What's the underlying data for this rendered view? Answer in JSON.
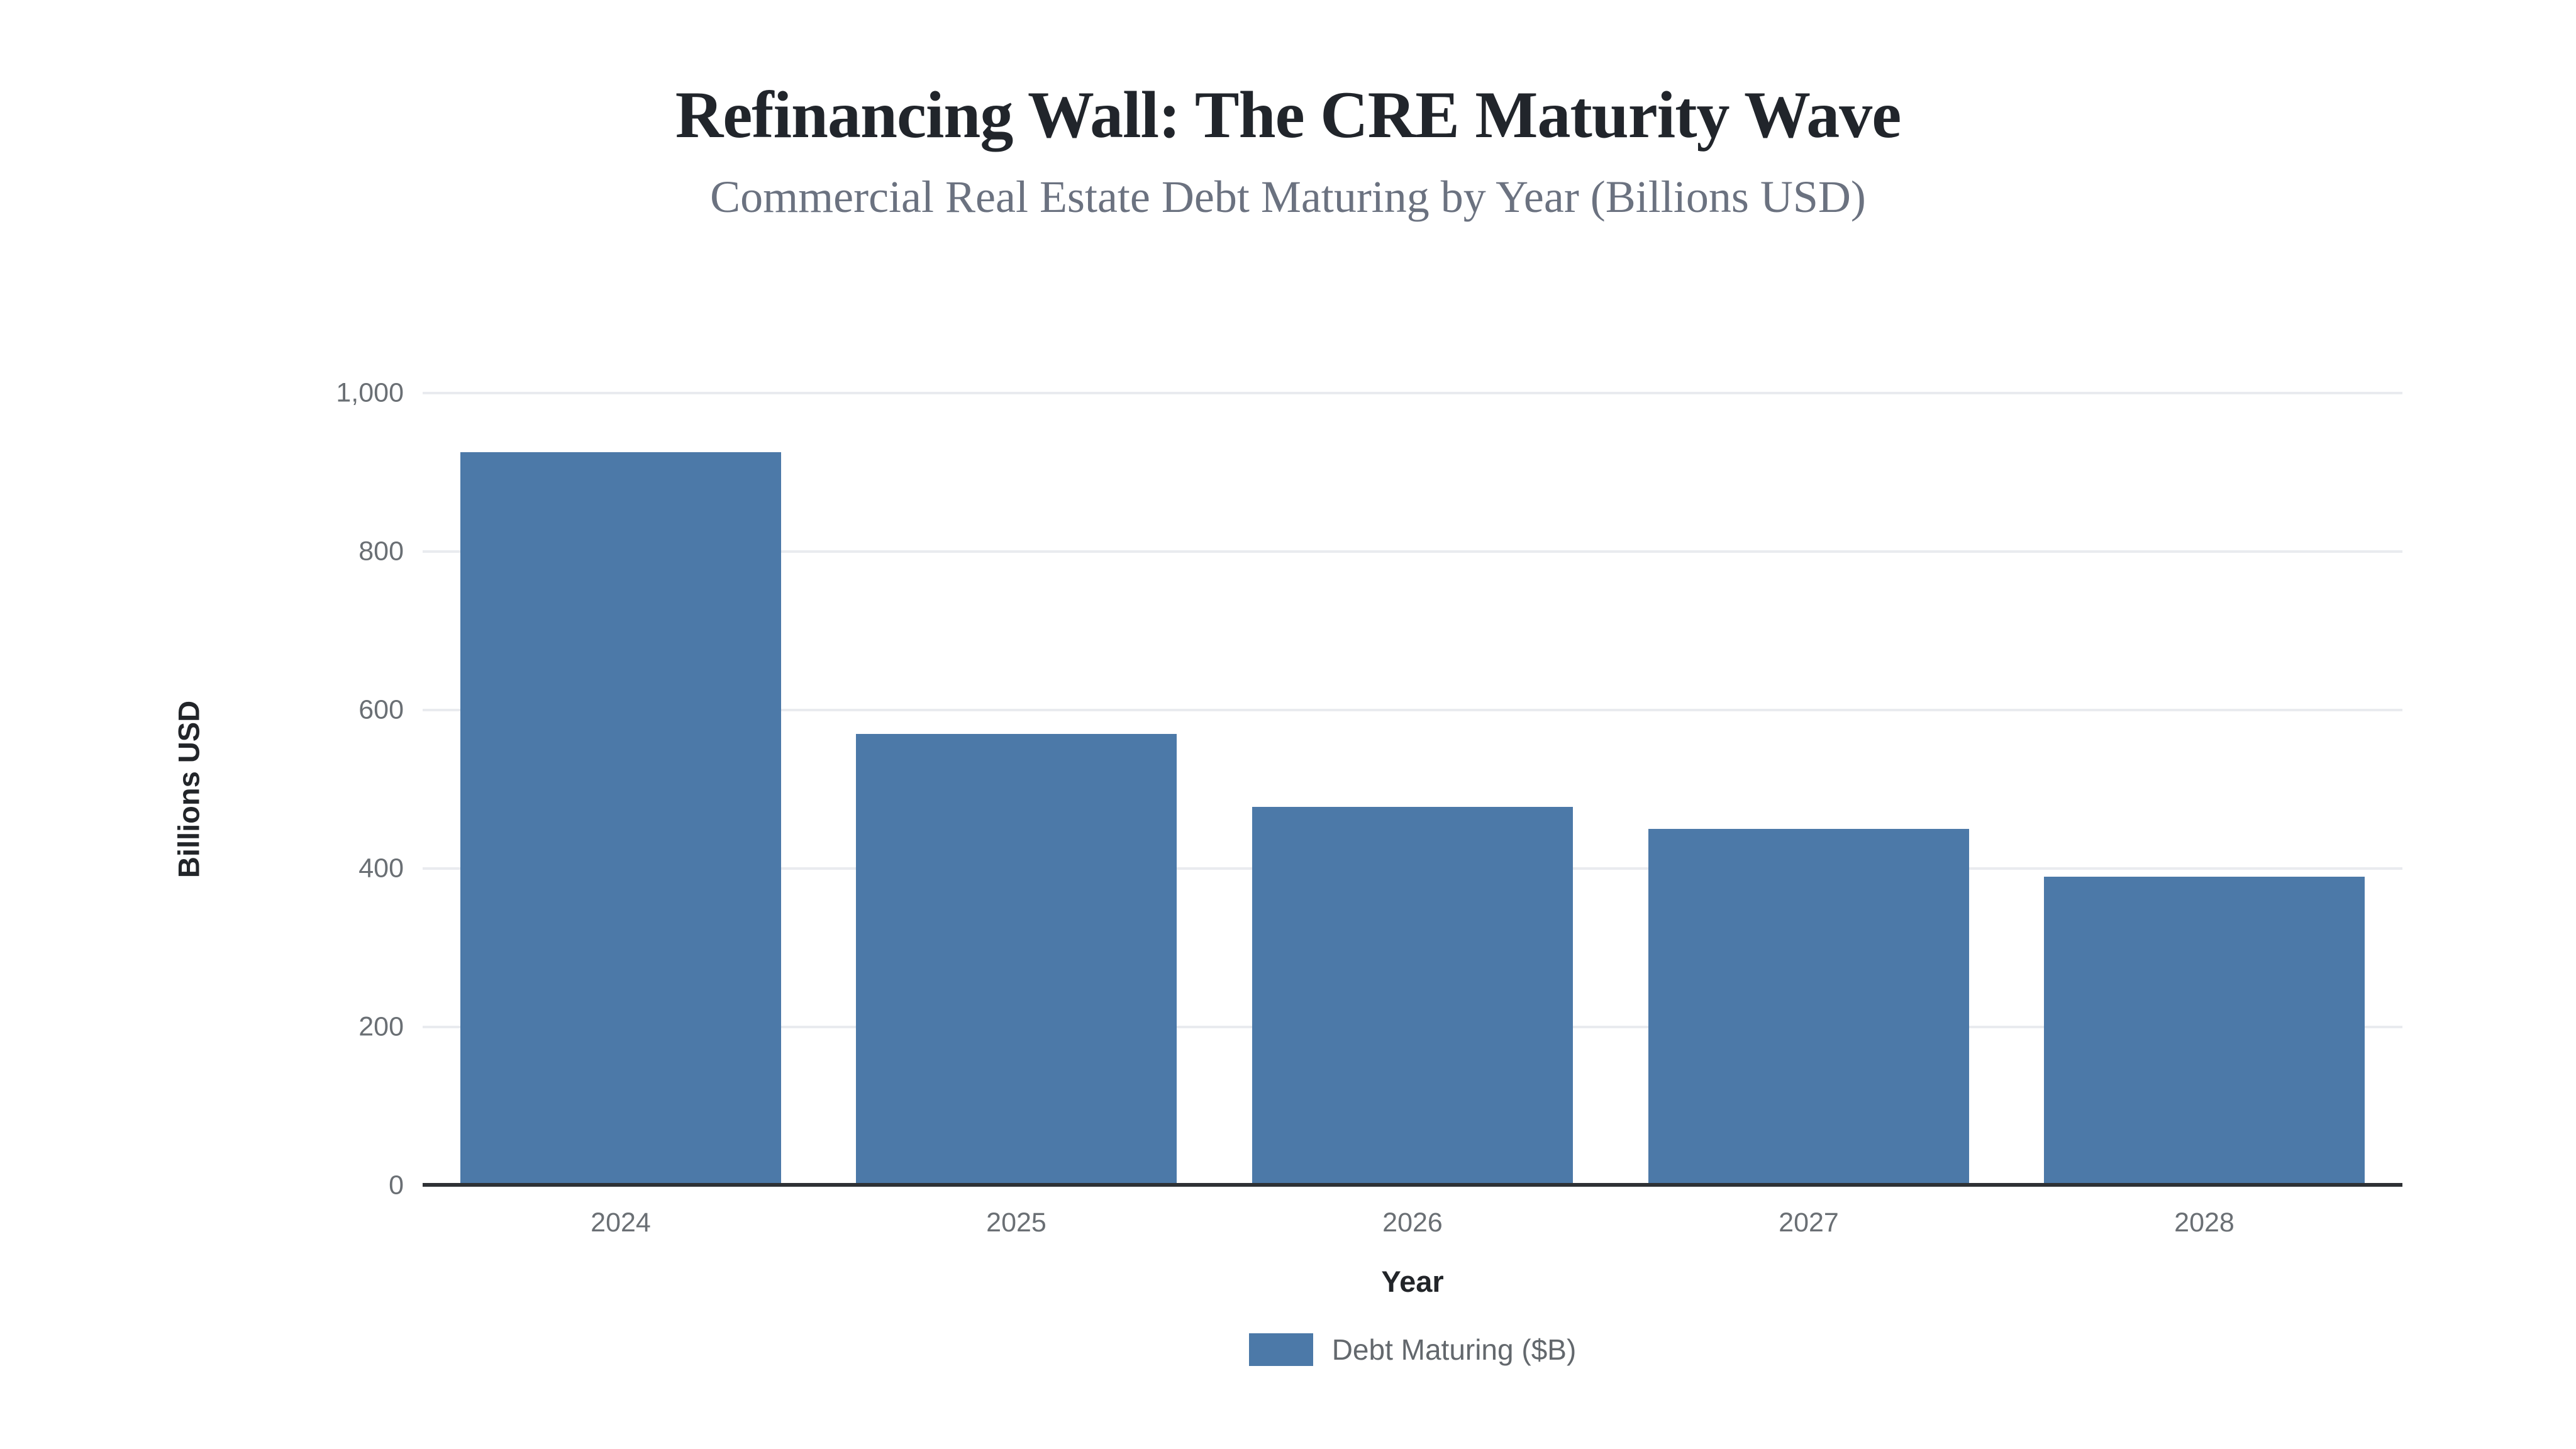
{
  "header": {
    "title": "Refinancing Wall: The CRE Maturity Wave",
    "subtitle": "Commercial Real Estate Debt Maturing by Year (Billions USD)"
  },
  "axes": {
    "x_title": "Year",
    "y_title": "Billions USD"
  },
  "legend": {
    "label": "Debt Maturing ($B)"
  },
  "colors": {
    "background": "#ffffff",
    "bar": "#4c79a8",
    "gridline": "#e9ebef",
    "axis_baseline": "#2e3135",
    "tick_text": "#6a6f74",
    "title_text": "#21252b",
    "subtitle_text": "#6b7280",
    "axis_title_text": "#222529",
    "legend_text": "#63686d"
  },
  "chart_data": {
    "type": "bar",
    "title": "Refinancing Wall: The CRE Maturity Wave",
    "subtitle": "Commercial Real Estate Debt Maturing by Year (Billions USD)",
    "categories": [
      "2024",
      "2025",
      "2026",
      "2027",
      "2028"
    ],
    "series": [
      {
        "name": "Debt Maturing ($B)",
        "values": [
          925,
          570,
          478,
          450,
          390
        ]
      }
    ],
    "xlabel": "Year",
    "ylabel": "Billions USD",
    "ylim": [
      0,
      1000
    ],
    "yticks": [
      0,
      200,
      400,
      600,
      800,
      1000
    ],
    "ytick_labels": [
      "0",
      "200",
      "400",
      "600",
      "800",
      "1,000"
    ],
    "grid": "horizontal",
    "legend_position": "bottom",
    "bar_color": "#4c79a8"
  }
}
